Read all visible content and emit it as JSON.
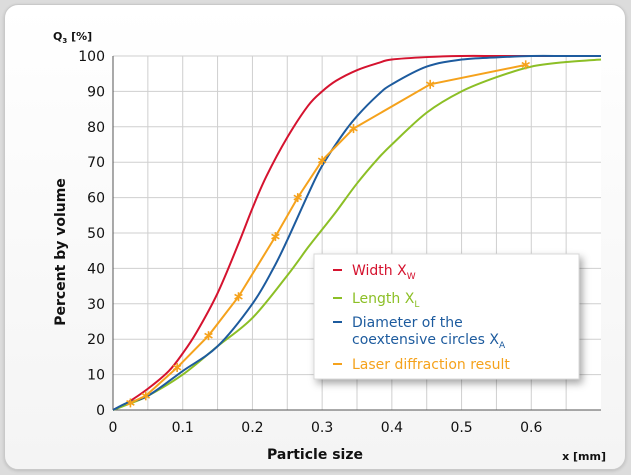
{
  "chart_data": {
    "type": "line",
    "title": "",
    "ylabel": "Percent by volume",
    "xlabel": "Particle size",
    "y_unit_label": {
      "main": "Q",
      "sub": "3",
      "rest": " [%]"
    },
    "x_unit_label": "x [mm]",
    "xlim": [
      0,
      0.7
    ],
    "ylim": [
      0,
      100
    ],
    "x_ticks": [
      0,
      0.1,
      0.2,
      0.3,
      0.4,
      0.5,
      0.6
    ],
    "x_tick_labels": [
      "0",
      "0.1",
      "0.2",
      "0.3",
      "0.4",
      "0.5",
      "0.6"
    ],
    "y_ticks": [
      0,
      10,
      20,
      30,
      40,
      50,
      60,
      70,
      80,
      90,
      100
    ],
    "y_tick_labels": [
      "0",
      "10",
      "20",
      "30",
      "40",
      "50",
      "60",
      "70",
      "80",
      "90",
      "100"
    ],
    "grid": true,
    "legend_position": "center-right",
    "series": [
      {
        "name": "Width X",
        "name_sub": "W",
        "color": "#d5132f",
        "markers": false,
        "x": [
          0,
          0.02,
          0.05,
          0.08,
          0.1,
          0.12,
          0.15,
          0.18,
          0.2,
          0.22,
          0.25,
          0.28,
          0.3,
          0.32,
          0.35,
          0.38,
          0.4,
          0.45,
          0.5,
          0.55,
          0.6,
          0.65
        ],
        "y": [
          0,
          2,
          6,
          11,
          16,
          22,
          33,
          47,
          57,
          66,
          77,
          86,
          90,
          93,
          96,
          98,
          99,
          99.7,
          100,
          100,
          100,
          100
        ]
      },
      {
        "name": "Length X",
        "name_sub": "L",
        "color": "#8cbf26",
        "markers": false,
        "x": [
          0,
          0.02,
          0.05,
          0.1,
          0.15,
          0.2,
          0.25,
          0.28,
          0.3,
          0.32,
          0.35,
          0.38,
          0.4,
          0.45,
          0.5,
          0.55,
          0.6,
          0.65,
          0.7
        ],
        "y": [
          0,
          1.5,
          4,
          10,
          18,
          26,
          38,
          46,
          51,
          56,
          64,
          71,
          75,
          84,
          90,
          94,
          97,
          98.3,
          99
        ]
      },
      {
        "name": "Diameter of the coextensive circles X",
        "name_line1": "Diameter of the",
        "name_line2": "coextensive circles X",
        "name_sub": "A",
        "color": "#1d5b9e",
        "markers": false,
        "x": [
          0,
          0.02,
          0.05,
          0.1,
          0.15,
          0.2,
          0.23,
          0.25,
          0.28,
          0.3,
          0.33,
          0.35,
          0.38,
          0.4,
          0.45,
          0.5,
          0.55,
          0.6,
          0.65,
          0.7
        ],
        "y": [
          0,
          2,
          4,
          11,
          18,
          30,
          40,
          48,
          61,
          69,
          78,
          83,
          89,
          92,
          97,
          99,
          99.6,
          100,
          100,
          100
        ]
      },
      {
        "name": "Laser diffraction result",
        "color": "#f5a21c",
        "markers": true,
        "x": [
          0.025,
          0.047,
          0.092,
          0.137,
          0.18,
          0.233,
          0.265,
          0.3,
          0.345,
          0.455,
          0.592
        ],
        "y": [
          2,
          4,
          12,
          21,
          32,
          49,
          60,
          70.5,
          79.5,
          92,
          97.5
        ]
      }
    ]
  }
}
